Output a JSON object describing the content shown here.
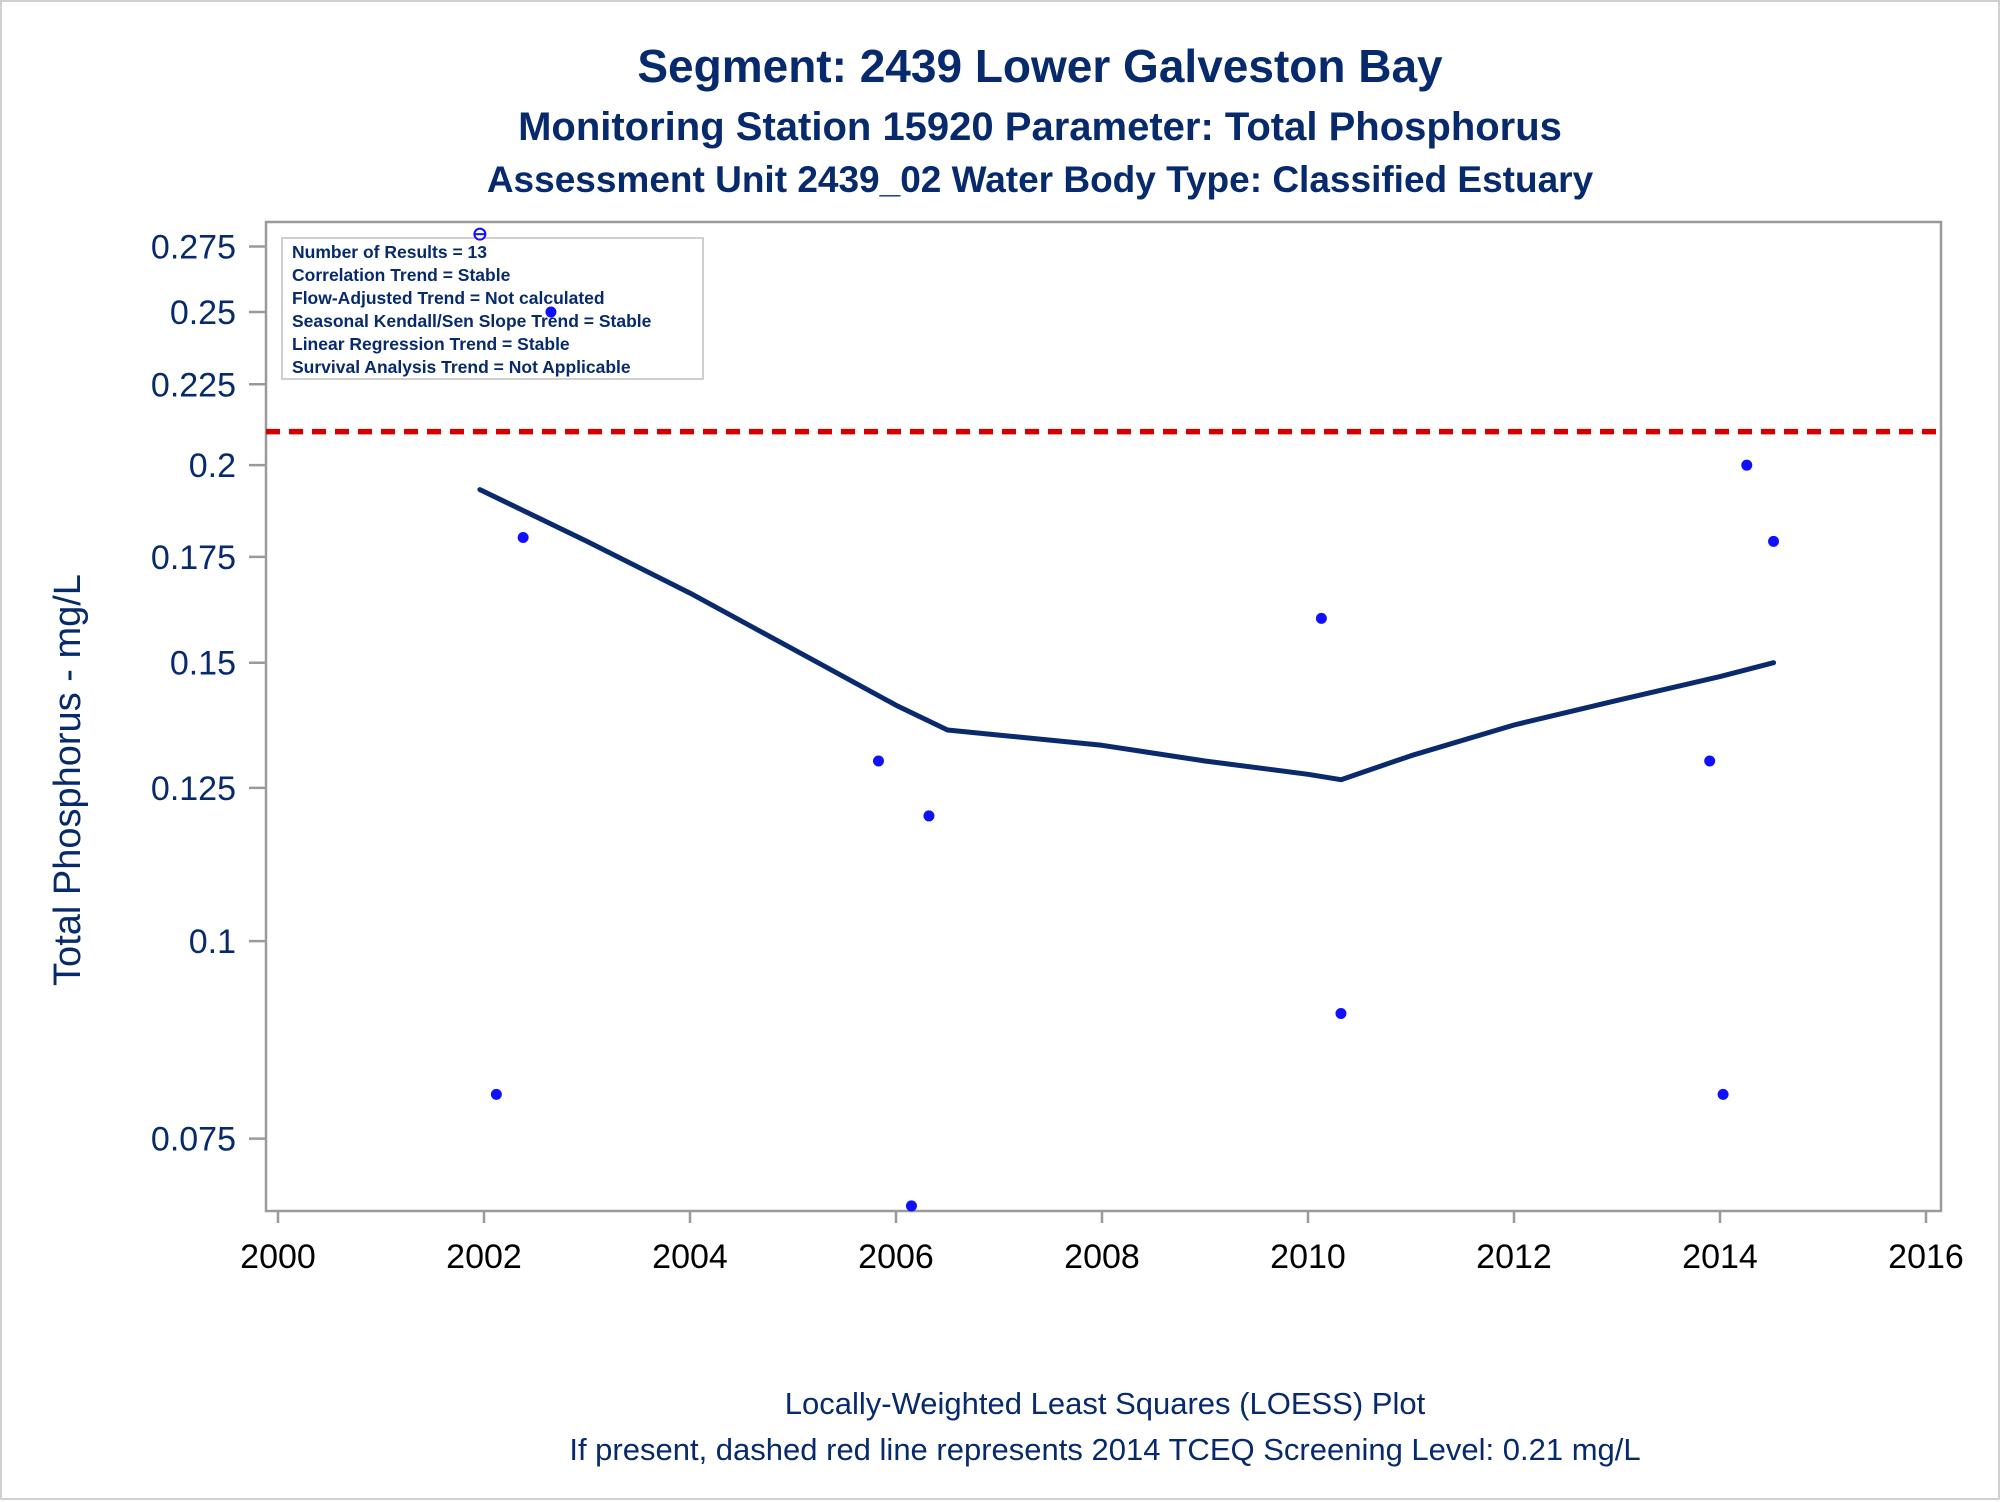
{
  "titles": {
    "line1": "Segment: 2439  Lower Galveston Bay",
    "line2": "Monitoring Station 15920 Parameter: Total Phosphorus",
    "line3": "Assessment Unit 2439_02   Water Body Type: Classified Estuary"
  },
  "stats_box": [
    "Number of Results = 13",
    "Correlation Trend = Stable",
    "Flow-Adjusted Trend = Not calculated",
    "Seasonal Kendall/Sen Slope Trend = Stable",
    "Linear Regression Trend = Stable",
    "Survival Analysis Trend = Not Applicable"
  ],
  "footnotes": {
    "line1": "Locally-Weighted Least Squares (LOESS) Plot",
    "line2": "If present, dashed red line represents 2014 TCEQ Screening Level: 0.21 mg/L"
  },
  "colors": {
    "title": "#072a6c",
    "points": "#1010ff",
    "loess": "#0b2a6e",
    "screening": "#d40000",
    "axis_frame": "#9a9a9a"
  },
  "chart_data": {
    "type": "scatter",
    "ylabel": "Total Phosphorus - mg/L",
    "y_scale": "log",
    "xlim": [
      2000,
      2016
    ],
    "ylim": [
      0.0675,
      0.285
    ],
    "x_ticks": [
      2000,
      2002,
      2004,
      2006,
      2008,
      2010,
      2012,
      2014,
      2016
    ],
    "x_tick_labels": [
      "2000",
      "2002",
      "2004",
      "2006",
      "2008",
      "2010",
      "2012",
      "2014",
      "2016"
    ],
    "y_ticks": [
      0.075,
      0.1,
      0.125,
      0.15,
      0.175,
      0.2,
      0.225,
      0.25,
      0.275
    ],
    "y_tick_labels": [
      "0.075",
      "0.1",
      "0.125",
      "0.15",
      "0.175",
      "0.2",
      "0.225",
      "0.25",
      "0.275"
    ],
    "grid": false,
    "legend": "top-left",
    "screening_level": 0.21,
    "series": [
      {
        "kind": "points",
        "x": [
          2001.96,
          2002.12,
          2002.38,
          2002.65,
          2005.83,
          2006.15,
          2006.32,
          2010.13,
          2010.32,
          2013.9,
          2014.03,
          2014.26,
          2014.52
        ],
        "y": [
          0.28,
          0.08,
          0.18,
          0.25,
          0.13,
          0.068,
          0.12,
          0.16,
          0.09,
          0.13,
          0.08,
          0.2,
          0.179
        ]
      },
      {
        "kind": "loess",
        "x": [
          2001.96,
          2003.0,
          2004.0,
          2005.0,
          2006.0,
          2006.5,
          2007.0,
          2008.0,
          2009.0,
          2010.0,
          2010.32,
          2011.0,
          2012.0,
          2013.0,
          2014.0,
          2014.52
        ],
        "y": [
          0.193,
          0.179,
          0.166,
          0.153,
          0.141,
          0.136,
          0.135,
          0.133,
          0.13,
          0.1275,
          0.1265,
          0.131,
          0.137,
          0.142,
          0.147,
          0.15
        ]
      }
    ]
  }
}
